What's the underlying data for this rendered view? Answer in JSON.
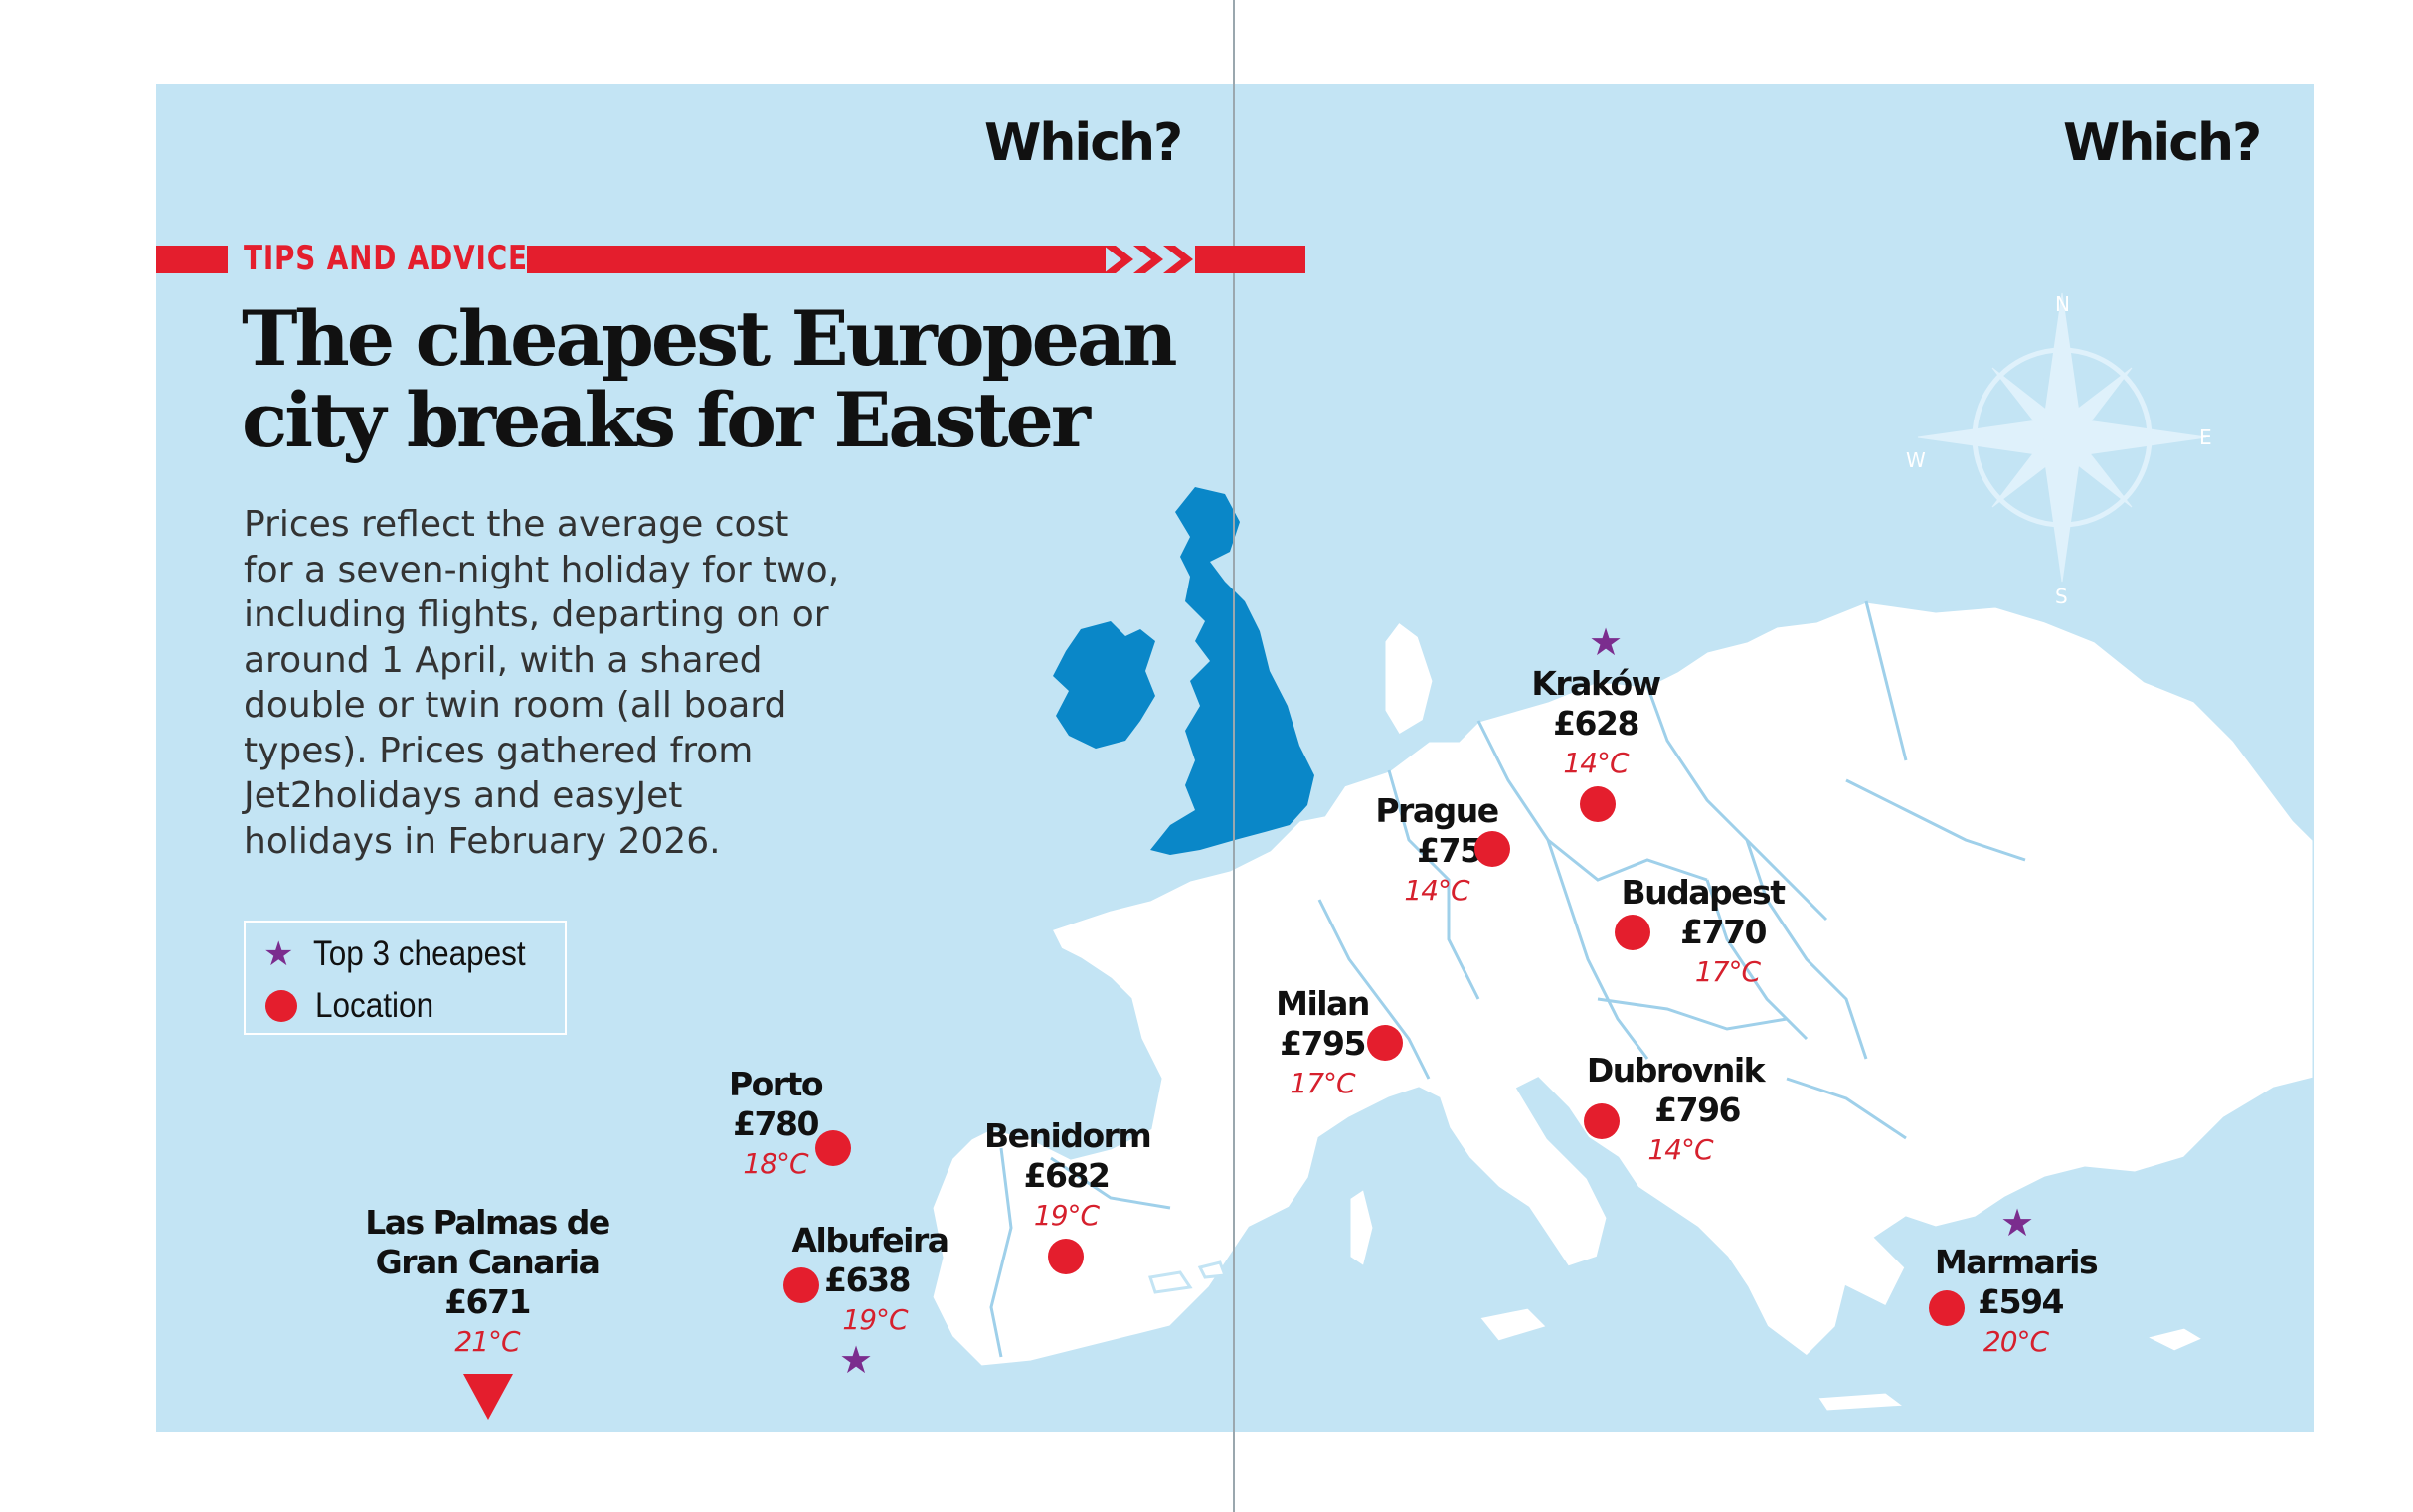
{
  "header": {
    "logo_left": "Which?",
    "logo_right": "Which?",
    "section": "TIPS AND ADVICE"
  },
  "title": {
    "line1": "The cheapest European",
    "line2": "city breaks for Easter"
  },
  "intro": "Prices reflect the average cost for a seven-night holiday for two, including flights, departing on or around 1 April, with a shared double or twin room (all board types). Prices gathered from Jet2holidays and easyJet holidays in February 2026.",
  "legend": {
    "top3": "Top 3 cheapest",
    "location": "Location"
  },
  "compass": {
    "n": "N",
    "e": "E",
    "s": "S",
    "w": "W"
  },
  "cities": {
    "krakow": {
      "name": "Kraków",
      "price": "£628",
      "temp": "14°C",
      "top3": true
    },
    "prague": {
      "name": "Prague",
      "price": "£753",
      "temp": "14°C"
    },
    "budapest": {
      "name": "Budapest",
      "price": "£770",
      "temp": "17°C"
    },
    "milan": {
      "name": "Milan",
      "price": "£795",
      "temp": "17°C"
    },
    "dubrovnik": {
      "name": "Dubrovnik",
      "price": "£796",
      "temp": "14°C"
    },
    "porto": {
      "name": "Porto",
      "price": "£780",
      "temp": "18°C"
    },
    "benidorm": {
      "name": "Benidorm",
      "price": "£682",
      "temp": "19°C"
    },
    "albufeira": {
      "name": "Albufeira",
      "price": "£638",
      "temp": "19°C",
      "top3": true
    },
    "laspalmas": {
      "name1": "Las Palmas de",
      "name2": "Gran Canaria",
      "price": "£671",
      "temp": "21°C"
    },
    "marmaris": {
      "name": "Marmaris",
      "price": "£594",
      "temp": "20°C",
      "top3": true
    }
  },
  "colors": {
    "sea": "#c3e4f4",
    "land": "#ffffff",
    "uk": "#0a87c8",
    "accent": "#e41e2d",
    "star": "#7b2d8e"
  }
}
